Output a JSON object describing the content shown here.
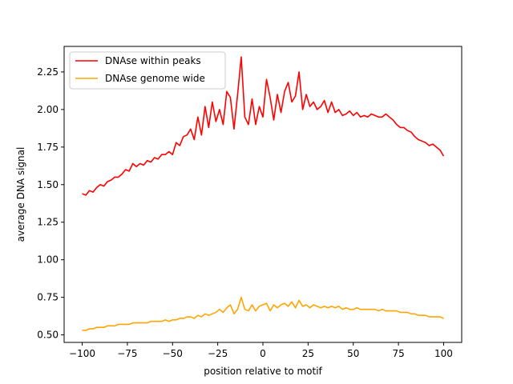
{
  "chart_data": {
    "type": "line",
    "xlabel": "position relative to motif",
    "ylabel": "average DNA signal",
    "xlim": [
      -110,
      110
    ],
    "ylim": [
      0.45,
      2.42
    ],
    "xticks": [
      -100,
      -75,
      -50,
      -25,
      0,
      25,
      50,
      75,
      100
    ],
    "xtick_labels": [
      "−100",
      "−75",
      "−50",
      "−25",
      "0",
      "25",
      "50",
      "75",
      "100"
    ],
    "yticks": [
      0.5,
      0.75,
      1.0,
      1.25,
      1.5,
      1.75,
      2.0,
      2.25
    ],
    "ytick_labels": [
      "0.50",
      "0.75",
      "1.00",
      "1.25",
      "1.50",
      "1.75",
      "2.00",
      "2.25"
    ],
    "grid": false,
    "legend_position": "top-left",
    "series": [
      {
        "name": "DNAse within peaks",
        "color": "#ff0000",
        "x": [
          -100,
          -98,
          -96,
          -94,
          -92,
          -90,
          -88,
          -86,
          -84,
          -82,
          -80,
          -78,
          -76,
          -74,
          -72,
          -70,
          -68,
          -66,
          -64,
          -62,
          -60,
          -58,
          -56,
          -54,
          -52,
          -50,
          -48,
          -46,
          -44,
          -42,
          -40,
          -38,
          -36,
          -34,
          -32,
          -30,
          -28,
          -26,
          -24,
          -22,
          -20,
          -18,
          -16,
          -14,
          -12,
          -10,
          -8,
          -6,
          -4,
          -2,
          0,
          2,
          4,
          6,
          8,
          10,
          12,
          14,
          16,
          18,
          20,
          22,
          24,
          26,
          28,
          30,
          32,
          34,
          36,
          38,
          40,
          42,
          44,
          46,
          48,
          50,
          52,
          54,
          56,
          58,
          60,
          62,
          64,
          66,
          68,
          70,
          72,
          74,
          76,
          78,
          80,
          82,
          84,
          86,
          88,
          90,
          92,
          94,
          96,
          98,
          100
        ],
        "y": [
          1.44,
          1.43,
          1.46,
          1.45,
          1.48,
          1.5,
          1.49,
          1.52,
          1.53,
          1.55,
          1.55,
          1.57,
          1.6,
          1.59,
          1.64,
          1.62,
          1.64,
          1.63,
          1.66,
          1.65,
          1.68,
          1.67,
          1.7,
          1.7,
          1.72,
          1.7,
          1.78,
          1.76,
          1.82,
          1.83,
          1.87,
          1.8,
          1.95,
          1.83,
          2.02,
          1.88,
          2.05,
          1.92,
          2.0,
          1.9,
          2.12,
          2.08,
          1.87,
          2.1,
          2.35,
          1.95,
          1.9,
          2.07,
          1.9,
          2.02,
          1.95,
          2.2,
          2.08,
          1.93,
          2.1,
          1.98,
          2.12,
          2.18,
          2.05,
          2.09,
          2.25,
          2.0,
          2.1,
          2.02,
          2.05,
          2.0,
          2.02,
          2.06,
          1.98,
          2.05,
          1.98,
          2.0,
          1.96,
          1.97,
          1.99,
          1.96,
          1.98,
          1.95,
          1.96,
          1.95,
          1.97,
          1.96,
          1.95,
          1.95,
          1.97,
          1.95,
          1.93,
          1.9,
          1.88,
          1.88,
          1.86,
          1.85,
          1.82,
          1.8,
          1.79,
          1.78,
          1.76,
          1.77,
          1.75,
          1.73,
          1.69
        ]
      },
      {
        "name": "DNAse genome wide",
        "color": "#ffa500",
        "x": [
          -100,
          -98,
          -96,
          -94,
          -92,
          -90,
          -88,
          -86,
          -84,
          -82,
          -80,
          -78,
          -76,
          -74,
          -72,
          -70,
          -68,
          -66,
          -64,
          -62,
          -60,
          -58,
          -56,
          -54,
          -52,
          -50,
          -48,
          -46,
          -44,
          -42,
          -40,
          -38,
          -36,
          -34,
          -32,
          -30,
          -28,
          -26,
          -24,
          -22,
          -20,
          -18,
          -16,
          -14,
          -12,
          -10,
          -8,
          -6,
          -4,
          -2,
          0,
          2,
          4,
          6,
          8,
          10,
          12,
          14,
          16,
          18,
          20,
          22,
          24,
          26,
          28,
          30,
          32,
          34,
          36,
          38,
          40,
          42,
          44,
          46,
          48,
          50,
          52,
          54,
          56,
          58,
          60,
          62,
          64,
          66,
          68,
          70,
          72,
          74,
          76,
          78,
          80,
          82,
          84,
          86,
          88,
          90,
          92,
          94,
          96,
          98,
          100
        ],
        "y": [
          0.53,
          0.53,
          0.54,
          0.54,
          0.55,
          0.55,
          0.55,
          0.56,
          0.56,
          0.56,
          0.57,
          0.57,
          0.57,
          0.57,
          0.58,
          0.58,
          0.58,
          0.58,
          0.58,
          0.59,
          0.59,
          0.59,
          0.59,
          0.6,
          0.59,
          0.6,
          0.6,
          0.61,
          0.61,
          0.62,
          0.62,
          0.61,
          0.63,
          0.62,
          0.64,
          0.63,
          0.64,
          0.65,
          0.67,
          0.65,
          0.68,
          0.7,
          0.64,
          0.67,
          0.75,
          0.67,
          0.66,
          0.7,
          0.66,
          0.69,
          0.7,
          0.71,
          0.66,
          0.7,
          0.68,
          0.7,
          0.71,
          0.69,
          0.72,
          0.68,
          0.73,
          0.69,
          0.7,
          0.68,
          0.7,
          0.69,
          0.68,
          0.69,
          0.68,
          0.69,
          0.68,
          0.69,
          0.67,
          0.68,
          0.67,
          0.67,
          0.68,
          0.67,
          0.67,
          0.67,
          0.67,
          0.67,
          0.66,
          0.67,
          0.66,
          0.66,
          0.66,
          0.66,
          0.65,
          0.65,
          0.65,
          0.64,
          0.64,
          0.63,
          0.63,
          0.63,
          0.62,
          0.62,
          0.62,
          0.62,
          0.61
        ]
      }
    ]
  }
}
